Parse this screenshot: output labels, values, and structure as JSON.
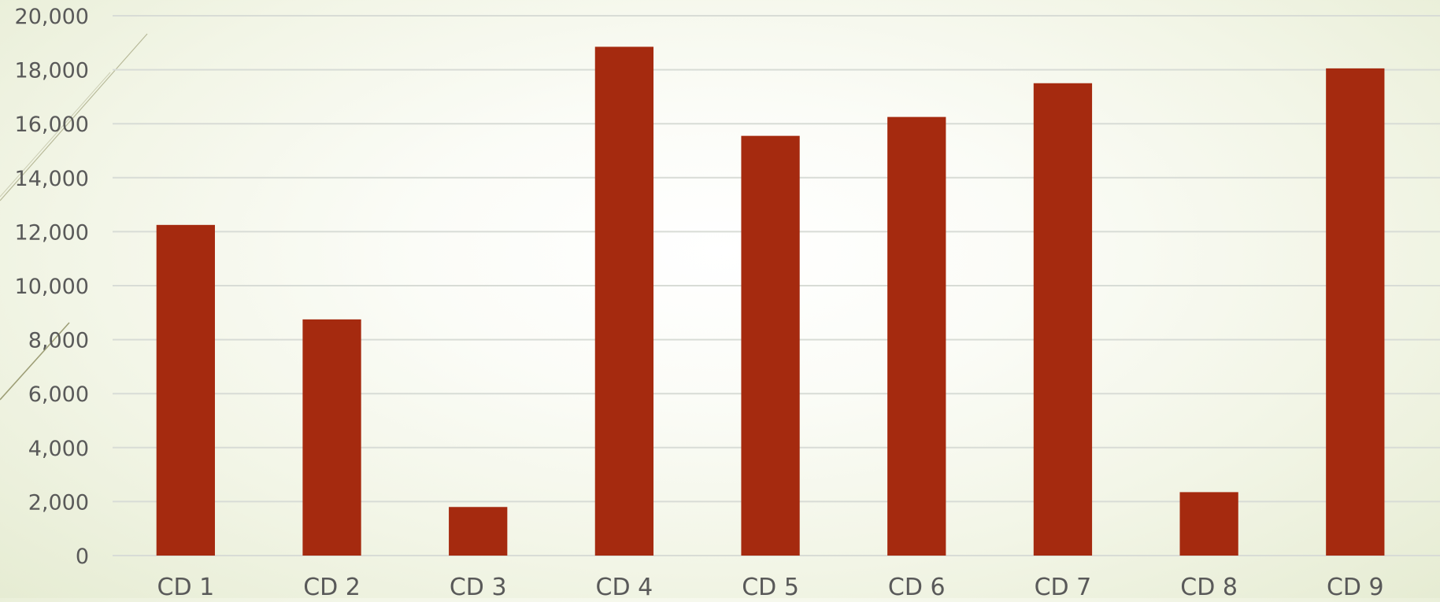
{
  "chart_data": {
    "type": "bar",
    "categories": [
      "CD 1",
      "CD 2",
      "CD 3",
      "CD 4",
      "CD 5",
      "CD 6",
      "CD 7",
      "CD 8",
      "CD 9"
    ],
    "series": [
      {
        "values": [
          12250,
          8750,
          1800,
          18850,
          15550,
          16250,
          17500,
          2350,
          18050
        ],
        "color": "#a52a0f"
      }
    ],
    "ylim": [
      0,
      20000
    ],
    "yticks": [
      0,
      2000,
      4000,
      6000,
      8000,
      10000,
      12000,
      14000,
      16000,
      18000,
      20000
    ],
    "ytick_labels": [
      "0",
      "2,000",
      "4,000",
      "6,000",
      "8,000",
      "10,000",
      "12,000",
      "14,000",
      "16,000",
      "18,000",
      "20,000"
    ],
    "grid": true,
    "legend": "none",
    "title": "",
    "xlabel": "",
    "ylabel": "",
    "colors": {
      "bar": "#a52a0f",
      "gridline": "#d8dcd6",
      "tick_text": "#595959",
      "decoration": "#8a8a5c"
    }
  }
}
